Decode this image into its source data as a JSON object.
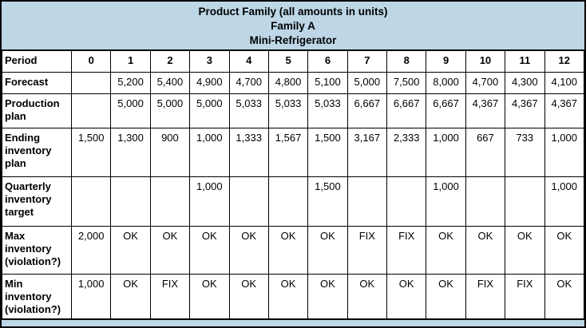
{
  "table": {
    "title_lines": [
      "Product Family (all amounts in units)",
      "Family A",
      "Mini-Refrigerator"
    ],
    "header_row": {
      "label": "Period",
      "values": [
        "0",
        "1",
        "2",
        "3",
        "4",
        "5",
        "6",
        "7",
        "8",
        "9",
        "10",
        "11",
        "12"
      ]
    },
    "rows": [
      {
        "label": "Forecast",
        "values": [
          "",
          "5,200",
          "5,400",
          "4,900",
          "4,700",
          "4,800",
          "5,100",
          "5,000",
          "7,500",
          "8,000",
          "4,700",
          "4,300",
          "4,100"
        ]
      },
      {
        "label": "Production plan",
        "values": [
          "",
          "5,000",
          "5,000",
          "5,000",
          "5,033",
          "5,033",
          "5,033",
          "6,667",
          "6,667",
          "6,667",
          "4,367",
          "4,367",
          "4,367"
        ]
      },
      {
        "label": "Ending inventory plan",
        "values": [
          "1,500",
          "1,300",
          "900",
          "1,000",
          "1,333",
          "1,567",
          "1,500",
          "3,167",
          "2,333",
          "1,000",
          "667",
          "733",
          "1,000"
        ]
      },
      {
        "label": "Quarterly inventory target",
        "values": [
          "",
          "",
          "",
          "1,000",
          "",
          "",
          "1,500",
          "",
          "",
          "1,000",
          "",
          "",
          "1,000"
        ]
      },
      {
        "label": "Max inventory (violation?)",
        "values": [
          "2,000",
          "OK",
          "OK",
          "OK",
          "OK",
          "OK",
          "OK",
          "FIX",
          "FIX",
          "OK",
          "OK",
          "OK",
          "OK"
        ]
      },
      {
        "label": "Min inventory (violation?)",
        "values": [
          "1,000",
          "OK",
          "FIX",
          "OK",
          "OK",
          "OK",
          "OK",
          "OK",
          "OK",
          "OK",
          "FIX",
          "FIX",
          "OK"
        ]
      }
    ],
    "colors": {
      "band_bg": "#bdd7e7",
      "cell_bg": "#ffffff",
      "border": "#000000"
    }
  }
}
